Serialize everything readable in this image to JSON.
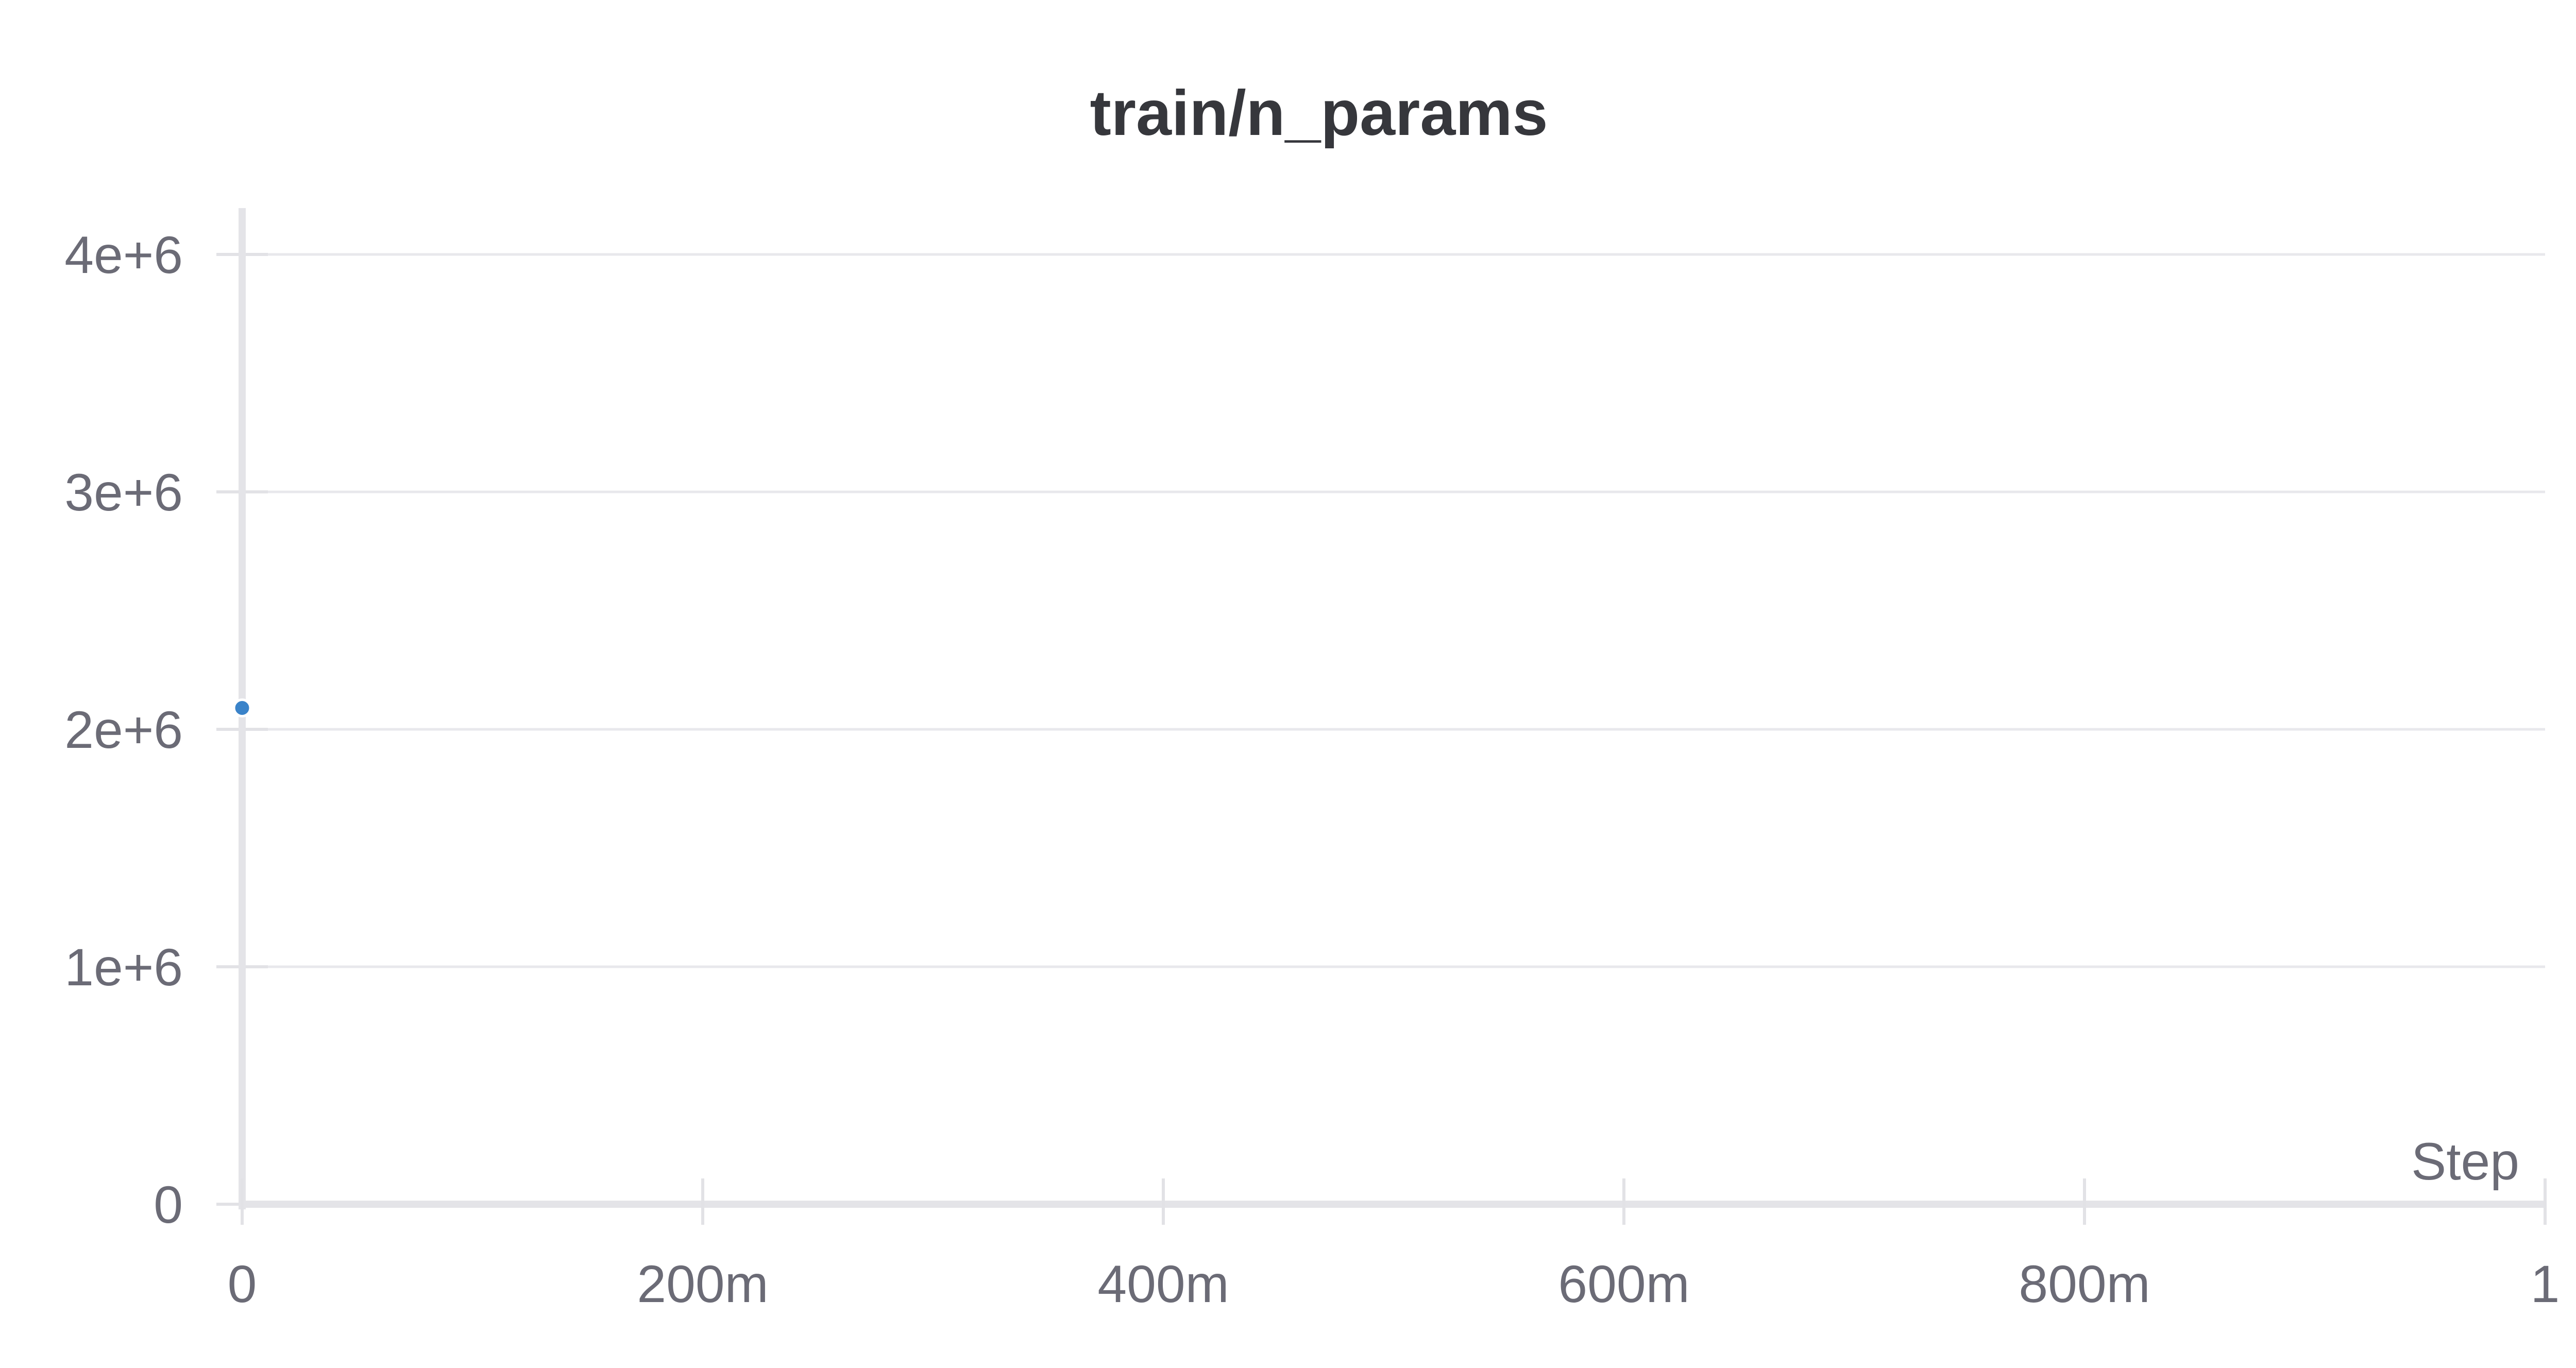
{
  "chart_data": {
    "type": "scatter",
    "title": "train/n_params",
    "xlabel": "Step",
    "ylabel": "",
    "xlim": [
      0,
      1
    ],
    "ylim": [
      0,
      4000000
    ],
    "x_ticks": [
      {
        "value": 0,
        "label": "0"
      },
      {
        "value": 0.2,
        "label": "200m"
      },
      {
        "value": 0.4,
        "label": "400m"
      },
      {
        "value": 0.6,
        "label": "600m"
      },
      {
        "value": 0.8,
        "label": "800m"
      },
      {
        "value": 1,
        "label": "1"
      }
    ],
    "y_ticks": [
      {
        "value": 0,
        "label": "0"
      },
      {
        "value": 1000000,
        "label": "1e+6"
      },
      {
        "value": 2000000,
        "label": "2e+6"
      },
      {
        "value": 3000000,
        "label": "3e+6"
      },
      {
        "value": 4000000,
        "label": "4e+6"
      }
    ],
    "grid": true,
    "series": [
      {
        "color": "#3a83c9",
        "points": [
          {
            "x": 0,
            "y": 2090000
          }
        ]
      }
    ]
  }
}
